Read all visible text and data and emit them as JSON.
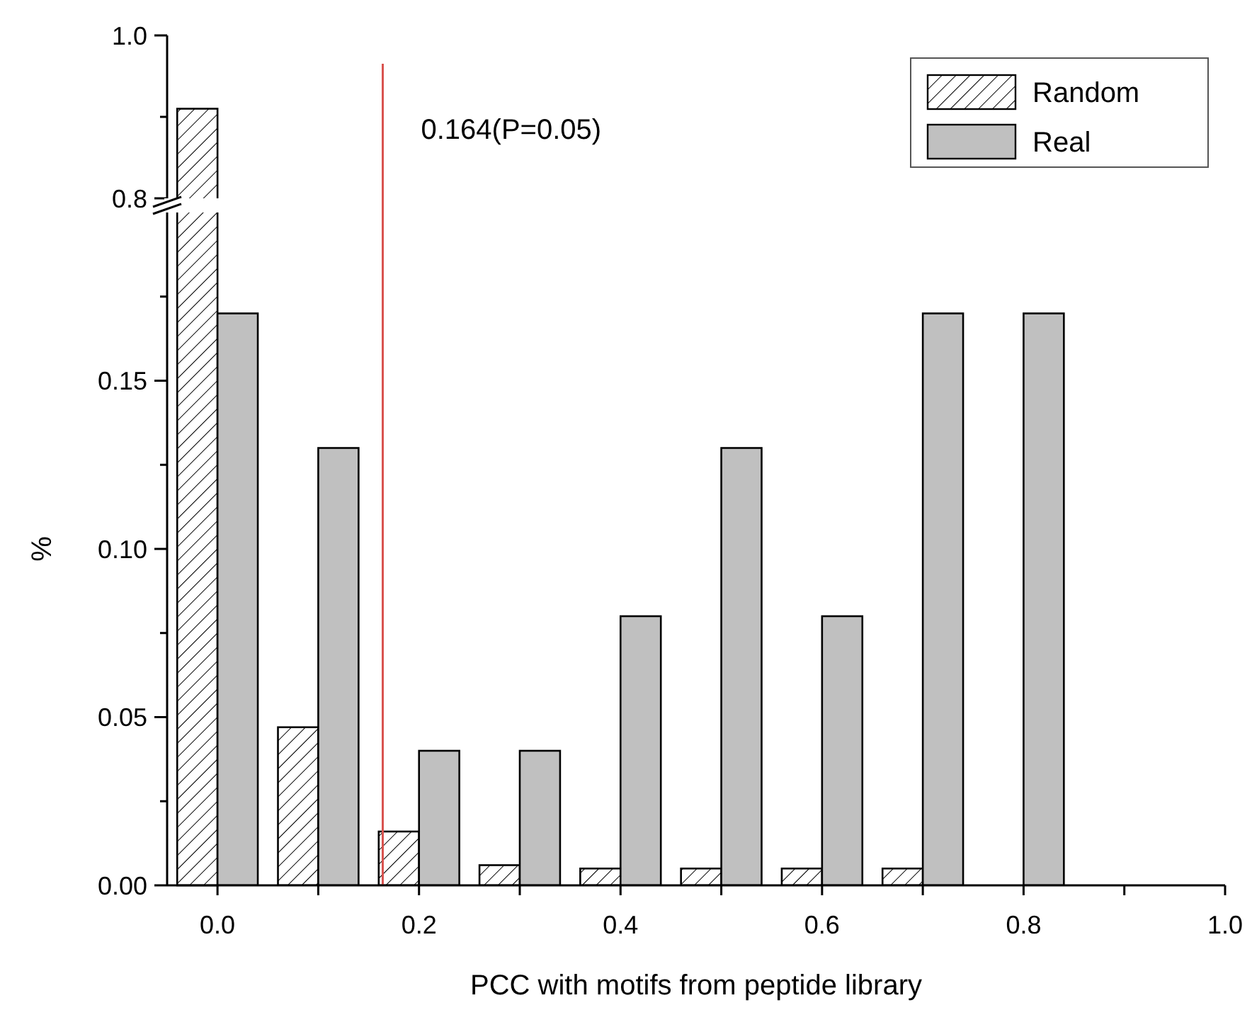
{
  "chart_data": [
    {
      "type": "bar",
      "x": [
        0
      ],
      "xlim": [
        -0.05,
        1.0
      ],
      "ylim": [
        0.8,
        1.0
      ],
      "yticks": [
        {
          "value": 0.8,
          "label": "0.8"
        },
        {
          "value": 0.9,
          "label": null
        },
        {
          "value": 1.0,
          "label": "1.0"
        }
      ],
      "tick_labels": "y",
      "legend": "top right",
      "series": [
        {
          "name": "Random",
          "color": "#000000",
          "values": [
            0.91
          ]
        },
        {
          "name": "Real",
          "color": "#c0c0c0",
          "values": [
            null
          ]
        }
      ],
      "ref_lines": [
        {
          "axis": "x",
          "value": 0.164,
          "label": "0.164(P=0.05)",
          "color": "#d9534f"
        }
      ]
    },
    {
      "type": "bar",
      "x": [
        0,
        0.1,
        0.2,
        0.3,
        0.4,
        0.5,
        0.6,
        0.7,
        0.8
      ],
      "xlim": [
        -0.05,
        1.0
      ],
      "ylim": [
        0,
        0.2
      ],
      "xlabel": "PCC with motifs from peptide library",
      "ylabel": "%",
      "xticks": [
        {
          "value": 0,
          "label": "0.0"
        },
        {
          "value": 0.1,
          "label": null
        },
        {
          "value": 0.2,
          "label": "0.2"
        },
        {
          "value": 0.3,
          "label": null
        },
        {
          "value": 0.4,
          "label": "0.4"
        },
        {
          "value": 0.5,
          "label": null
        },
        {
          "value": 0.6,
          "label": "0.6"
        },
        {
          "value": 0.7,
          "label": null
        },
        {
          "value": 0.8,
          "label": "0.8"
        },
        {
          "value": 0.9,
          "label": null
        },
        {
          "value": 1.0,
          "label": "1.0"
        }
      ],
      "yticks": [
        {
          "value": 0,
          "label": "0.00"
        },
        {
          "value": 0.025,
          "label": null
        },
        {
          "value": 0.05,
          "label": "0.05"
        },
        {
          "value": 0.075,
          "label": null
        },
        {
          "value": 0.1,
          "label": "0.10"
        },
        {
          "value": 0.125,
          "label": null
        },
        {
          "value": 0.15,
          "label": "0.15"
        },
        {
          "value": 0.175,
          "label": null
        }
      ],
      "series": [
        {
          "color": "#000000",
          "values": [
            null,
            0.047,
            0.016,
            0.006,
            0.005,
            0.005,
            0.005,
            0.005,
            null
          ]
        },
        {
          "color": "#c0c0c0",
          "values": [
            0.17,
            0.13,
            0.04,
            0.04,
            0.08,
            0.13,
            0.08,
            0.17,
            0.17
          ]
        }
      ],
      "ref_lines": [
        {
          "axis": "x",
          "value": 0.164,
          "color": "#d9534f"
        }
      ]
    }
  ]
}
